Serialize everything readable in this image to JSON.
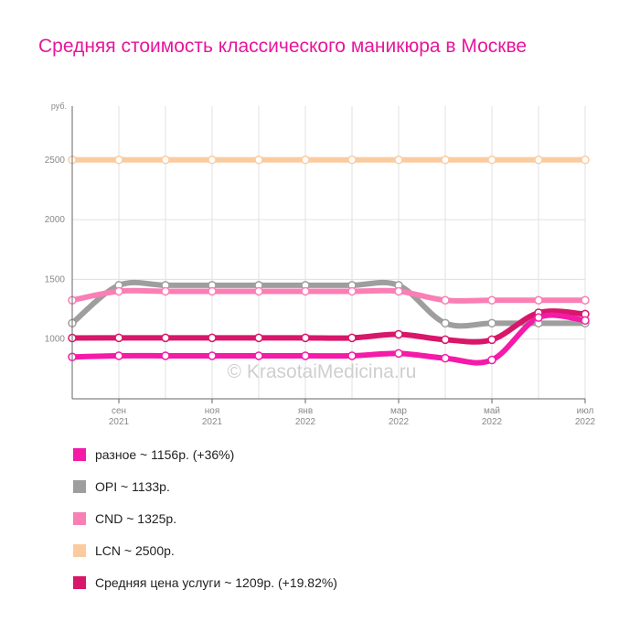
{
  "title": "Средняя стоимость классического маникюра в Москве",
  "watermark": "© KrasotaiMedicina.ru",
  "chart_data": {
    "type": "line",
    "ylabel": "руб.",
    "ylim": [
      500,
      2950
    ],
    "yticks": [
      1000,
      1500,
      2000,
      2500
    ],
    "x_labels": [
      {
        "x": 1,
        "top": "сен",
        "bottom": "2021"
      },
      {
        "x": 3,
        "top": "ноя",
        "bottom": "2021"
      },
      {
        "x": 5,
        "top": "янв",
        "bottom": "2022"
      },
      {
        "x": 7,
        "top": "мар",
        "bottom": "2022"
      },
      {
        "x": 9,
        "top": "май",
        "bottom": "2022"
      },
      {
        "x": 11,
        "top": "июл",
        "bottom": "2022"
      }
    ],
    "x": [
      0,
      1,
      2,
      3,
      4,
      5,
      6,
      7,
      8,
      9,
      10,
      11
    ],
    "series": [
      {
        "name": "LCN",
        "color": "#fbcba0",
        "values": [
          2500,
          2500,
          2500,
          2500,
          2500,
          2500,
          2500,
          2500,
          2500,
          2500,
          2500,
          2500
        ]
      },
      {
        "name": "OPI",
        "color": "#9e9e9e",
        "values": [
          1133,
          1450,
          1450,
          1450,
          1450,
          1450,
          1450,
          1450,
          1133,
          1133,
          1133,
          1133
        ]
      },
      {
        "name": "CND",
        "color": "#f97fb5",
        "values": [
          1325,
          1400,
          1400,
          1400,
          1400,
          1400,
          1400,
          1400,
          1325,
          1325,
          1325,
          1325
        ]
      },
      {
        "name": "Средняя цена услуги",
        "color": "#d8166a",
        "values": [
          1009,
          1010,
          1010,
          1010,
          1010,
          1010,
          1010,
          1040,
          995,
          995,
          1220,
          1209
        ]
      },
      {
        "name": "разное",
        "color": "#f51aa8",
        "values": [
          850,
          860,
          860,
          860,
          860,
          860,
          860,
          880,
          840,
          825,
          1180,
          1156
        ]
      }
    ]
  },
  "legend": [
    {
      "text": "разное ~ 1156р. (+36%)",
      "color": "#f51aa8"
    },
    {
      "text": "OPI ~ 1133р.",
      "color": "#9e9e9e"
    },
    {
      "text": "CND ~ 1325р.",
      "color": "#f97fb5"
    },
    {
      "text": "LCN ~ 2500р.",
      "color": "#fbcba0"
    },
    {
      "text": "Средняя цена услуги ~ 1209р. (+19.82%)",
      "color": "#d8166a"
    }
  ]
}
